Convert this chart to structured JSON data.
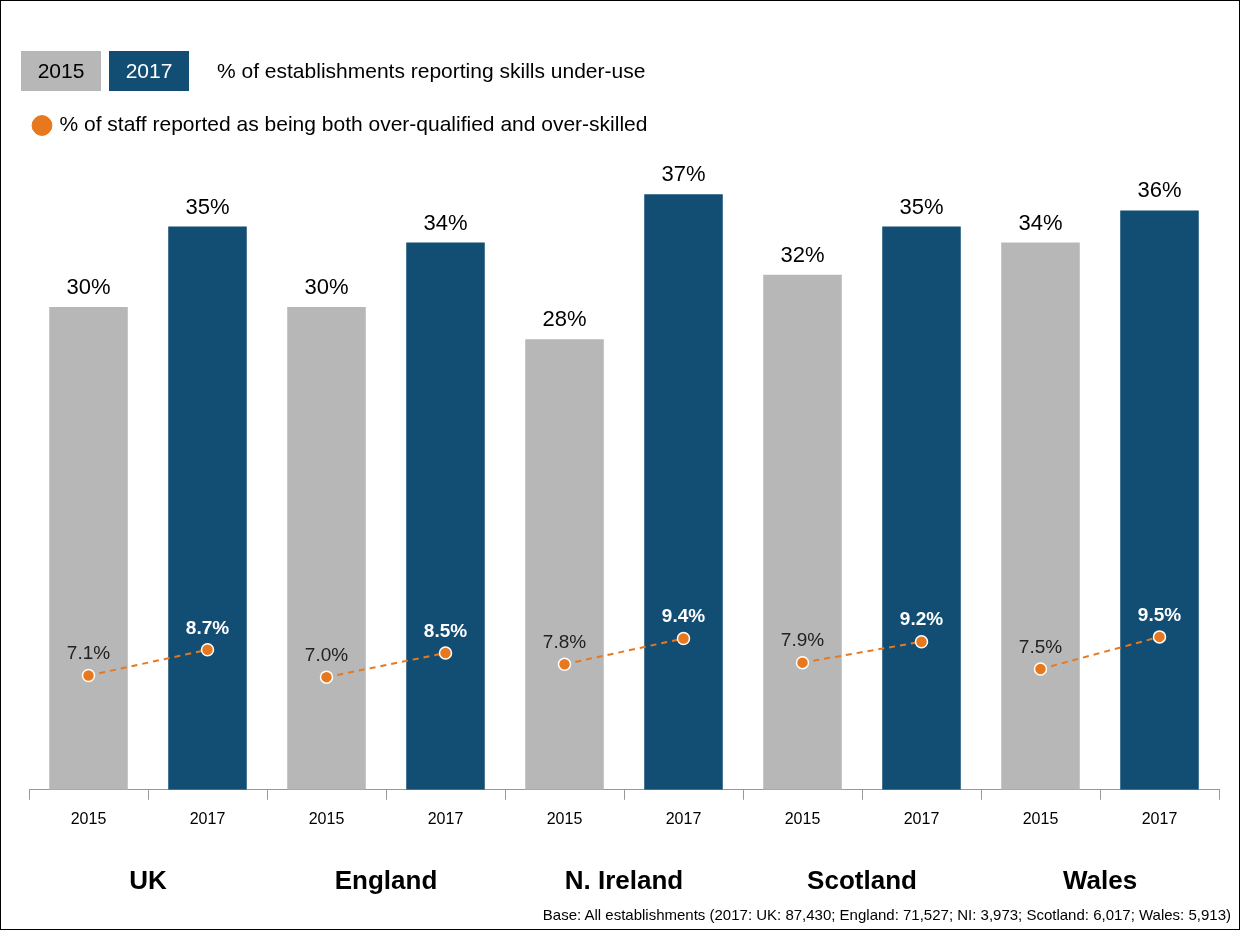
{
  "chart_data": {
    "type": "bar",
    "categories": [
      "2015",
      "2017",
      "2015",
      "2017",
      "2015",
      "2017",
      "2015",
      "2017",
      "2015",
      "2017"
    ],
    "series": [
      {
        "name": "2015",
        "color": "#b7b7b7",
        "values": [
          30,
          null,
          30,
          null,
          28,
          null,
          32,
          null,
          34,
          null
        ],
        "value_labels": [
          "30%",
          null,
          "30%",
          null,
          "28%",
          null,
          "32%",
          null,
          "34%",
          null
        ]
      },
      {
        "name": "2017",
        "color": "#124e73",
        "values": [
          null,
          35,
          null,
          34,
          null,
          37,
          null,
          35,
          null,
          36
        ],
        "value_labels": [
          null,
          "35%",
          null,
          "34%",
          null,
          "37%",
          null,
          "35%",
          null,
          "36%"
        ]
      },
      {
        "name": "% of staff reported as being both over-qualified and over-skilled",
        "type": "line",
        "color": "#e8781e",
        "values": [
          7.1,
          8.7,
          null,
          null,
          null,
          null,
          null,
          null,
          null,
          null
        ],
        "value_labels": [
          "7.1%",
          "8.7%",
          null,
          null,
          null,
          null,
          null,
          null,
          null,
          null
        ]
      },
      {
        "type": "line",
        "color": "#e8781e",
        "values": [
          null,
          null,
          7.0,
          8.5,
          null,
          null,
          null,
          null,
          null,
          null
        ],
        "value_labels": [
          null,
          null,
          "7.0%",
          "8.5%",
          null,
          null,
          null,
          null,
          null,
          null
        ]
      },
      {
        "type": "line",
        "color": "#e8781e",
        "values": [
          null,
          null,
          null,
          null,
          7.8,
          9.4,
          null,
          null,
          null,
          null
        ],
        "value_labels": [
          null,
          null,
          null,
          null,
          "7.8%",
          "9.4%",
          null,
          null,
          null,
          null
        ]
      },
      {
        "type": "line",
        "color": "#e8781e",
        "values": [
          null,
          null,
          null,
          null,
          null,
          null,
          7.9,
          9.2,
          null,
          null
        ],
        "value_labels": [
          null,
          null,
          null,
          null,
          null,
          null,
          "7.9%",
          "9.2%",
          null,
          null
        ]
      },
      {
        "type": "line",
        "color": "#e8781e",
        "values": [
          null,
          null,
          null,
          null,
          null,
          null,
          null,
          null,
          7.5,
          9.5
        ],
        "value_labels": [
          null,
          null,
          null,
          null,
          null,
          null,
          null,
          null,
          "7.5%",
          "9.5%"
        ]
      }
    ],
    "annotations": [
      "% of establishments reporting skills under-use",
      "UK",
      "England",
      "N. Ireland",
      "Scotland",
      "Wales",
      "Base: All establishments (2017: UK: 87,430; England: 71,527; NI: 3,973; Scotland: 6,017; Wales: 5,913)"
    ],
    "relative": false,
    "legend": "top left",
    "marker": "circle",
    "line_style": "dashed"
  }
}
